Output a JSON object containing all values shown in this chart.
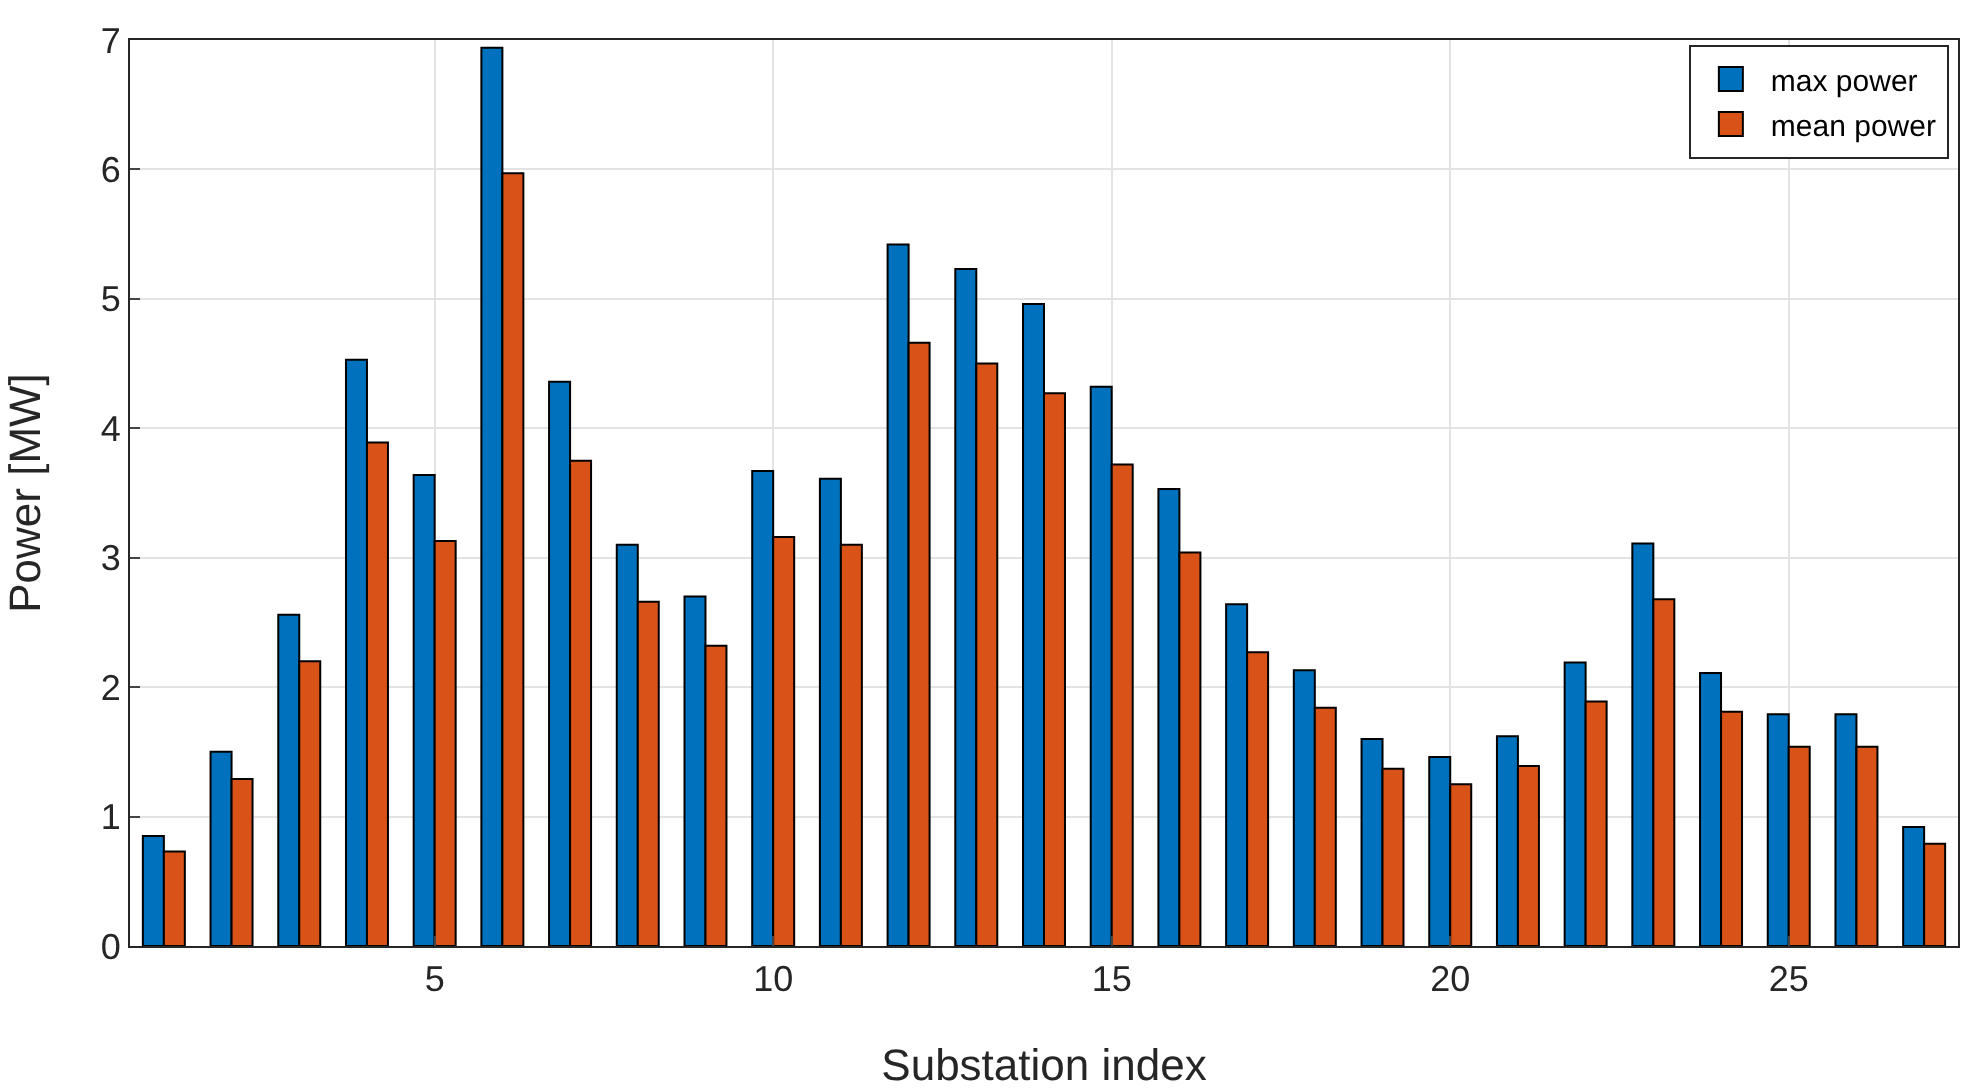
{
  "chart_data": {
    "type": "bar",
    "xlabel": "Substation index",
    "ylabel": "Power [MW]",
    "x": [
      1,
      2,
      3,
      4,
      5,
      6,
      7,
      8,
      9,
      10,
      11,
      12,
      13,
      14,
      15,
      16,
      17,
      18,
      19,
      20,
      21,
      22,
      23,
      24,
      25,
      26,
      27
    ],
    "xlim": [
      0.5,
      27.5
    ],
    "xticks": [
      5,
      10,
      15,
      20,
      25
    ],
    "ylim": [
      0,
      7
    ],
    "yticks": [
      0,
      1,
      2,
      3,
      4,
      5,
      6,
      7
    ],
    "series": [
      {
        "name": "max power",
        "color": "#0072bd",
        "values": [
          0.85,
          1.5,
          2.56,
          4.53,
          3.64,
          6.94,
          4.36,
          3.1,
          2.7,
          3.67,
          3.61,
          5.42,
          5.23,
          4.96,
          4.32,
          3.53,
          2.64,
          2.13,
          1.6,
          1.46,
          1.62,
          2.19,
          3.11,
          2.11,
          1.79,
          1.79,
          0.92
        ]
      },
      {
        "name": "mean power",
        "color": "#d95319",
        "values": [
          0.73,
          1.29,
          2.2,
          3.89,
          3.13,
          5.97,
          3.75,
          2.66,
          2.32,
          3.16,
          3.1,
          4.66,
          4.5,
          4.27,
          3.72,
          3.04,
          2.27,
          1.84,
          1.37,
          1.25,
          1.39,
          1.89,
          2.68,
          1.81,
          1.54,
          1.54,
          0.79
        ]
      }
    ],
    "grid": true,
    "legend": "top right"
  }
}
